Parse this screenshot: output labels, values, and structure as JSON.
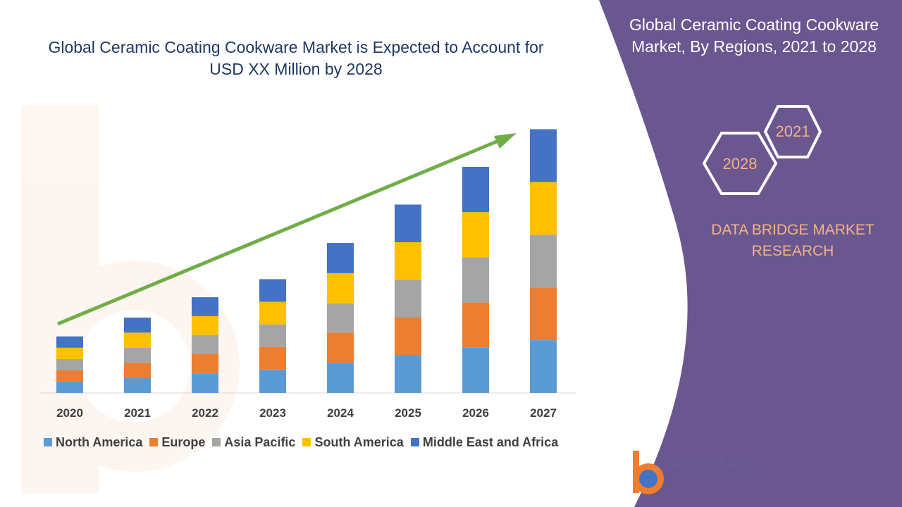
{
  "header": {
    "title": "Global Ceramic Coating Cookware Market is Expected to Account for USD XX Million by 2028"
  },
  "panel": {
    "title": "Global Ceramic Coating Cookware Market, By Regions, 2021 to 2028",
    "badge_2021": "2021",
    "badge_2028": "2028",
    "brand": "DATA BRIDGE MARKET RESEARCH",
    "logo_name": "DATA BRIDGE",
    "logo_sub": "MARKET RESEARCH"
  },
  "colors": {
    "panel_bg": "#6a5790",
    "accent_text": "#f4b183",
    "trend_arrow": "#70ad47",
    "title_text": "#1f3864"
  },
  "chart_data": {
    "type": "bar",
    "stacked": true,
    "categories": [
      "2020",
      "2021",
      "2022",
      "2023",
      "2024",
      "2025",
      "2026",
      "2027"
    ],
    "series": [
      {
        "name": "North America",
        "color": "#5b9bd5",
        "values": [
          15,
          20,
          26,
          31,
          40,
          50,
          60,
          70
        ]
      },
      {
        "name": "Europe",
        "color": "#ed7d31",
        "values": [
          15,
          20,
          26,
          30,
          40,
          50,
          60,
          70
        ]
      },
      {
        "name": "Asia Pacific",
        "color": "#a5a5a5",
        "values": [
          15,
          20,
          25,
          30,
          39,
          50,
          60,
          70
        ]
      },
      {
        "name": "South America",
        "color": "#ffc000",
        "values": [
          15,
          20,
          25,
          30,
          40,
          50,
          60,
          70
        ]
      },
      {
        "name": "Middle East and Africa",
        "color": "#4472c4",
        "values": [
          15,
          20,
          25,
          30,
          40,
          50,
          60,
          70
        ]
      }
    ],
    "trend_arrow": true,
    "gridlines": false,
    "legend_position": "bottom"
  }
}
